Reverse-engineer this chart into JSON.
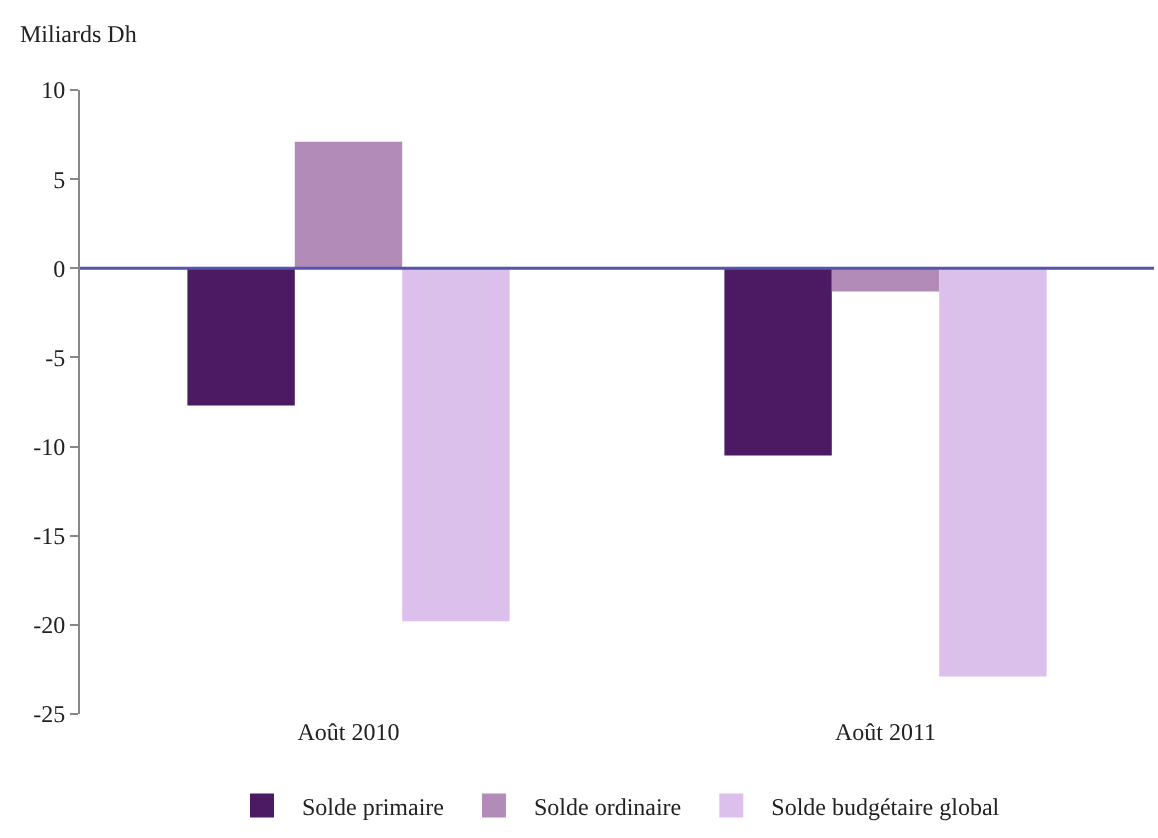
{
  "chart_data": {
    "type": "bar",
    "ylabel": "Miliards Dh",
    "categories": [
      "Août 2010",
      "Août 2011"
    ],
    "series": [
      {
        "name": "Solde primaire",
        "color": "#4b1a63",
        "values": [
          -7.7,
          -10.5
        ]
      },
      {
        "name": "Solde ordinaire",
        "color": "#b28bb9",
        "values": [
          7.1,
          -1.3
        ]
      },
      {
        "name": "Solde budgétaire global",
        "color": "#dcc0ec",
        "values": [
          -19.8,
          -22.9
        ]
      }
    ],
    "ylim": [
      -25,
      10
    ],
    "yticks": [
      -25,
      -20,
      -15,
      -10,
      -5,
      0,
      5,
      10
    ],
    "ref_lines": [
      {
        "axis": "y",
        "value": 0,
        "color": "#5555aa"
      }
    ],
    "legend": "bottom"
  }
}
